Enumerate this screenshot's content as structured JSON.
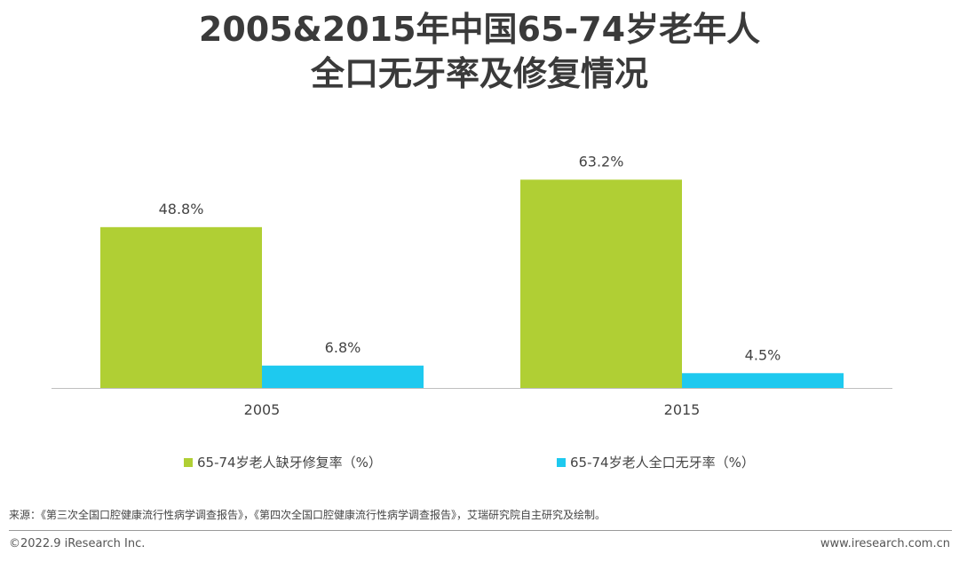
{
  "title_lines": [
    "2005&2015年中国65-74岁老年人",
    "全口无牙率及修复情况"
  ],
  "chart_data": {
    "type": "bar",
    "title": "2005&2015年中国65-74岁老年人全口无牙率及修复情况",
    "categories": [
      "2005",
      "2015"
    ],
    "series": [
      {
        "name": "65-74岁老人缺牙修复率（%）",
        "values": [
          48.8,
          63.2
        ],
        "labels": [
          "48.8%",
          "63.2%"
        ],
        "color": "#b0cf34"
      },
      {
        "name": "65-74岁老人全口无牙率（%）",
        "values": [
          6.8,
          4.5
        ],
        "labels": [
          "6.8%",
          "4.5%"
        ],
        "color": "#1ec9ef"
      }
    ],
    "xlabel": "",
    "ylabel": "",
    "ylim": [
      0,
      80
    ],
    "grid": false,
    "legend_position": "bottom"
  },
  "source": "来源：《第三次全国口腔健康流行性病学调查报告》，《第四次全国口腔健康流行性病学调查报告》，艾瑞研究院自主研究及绘制。",
  "copyright": "©2022.9 iResearch Inc.",
  "website": "www.iresearch.com.cn"
}
